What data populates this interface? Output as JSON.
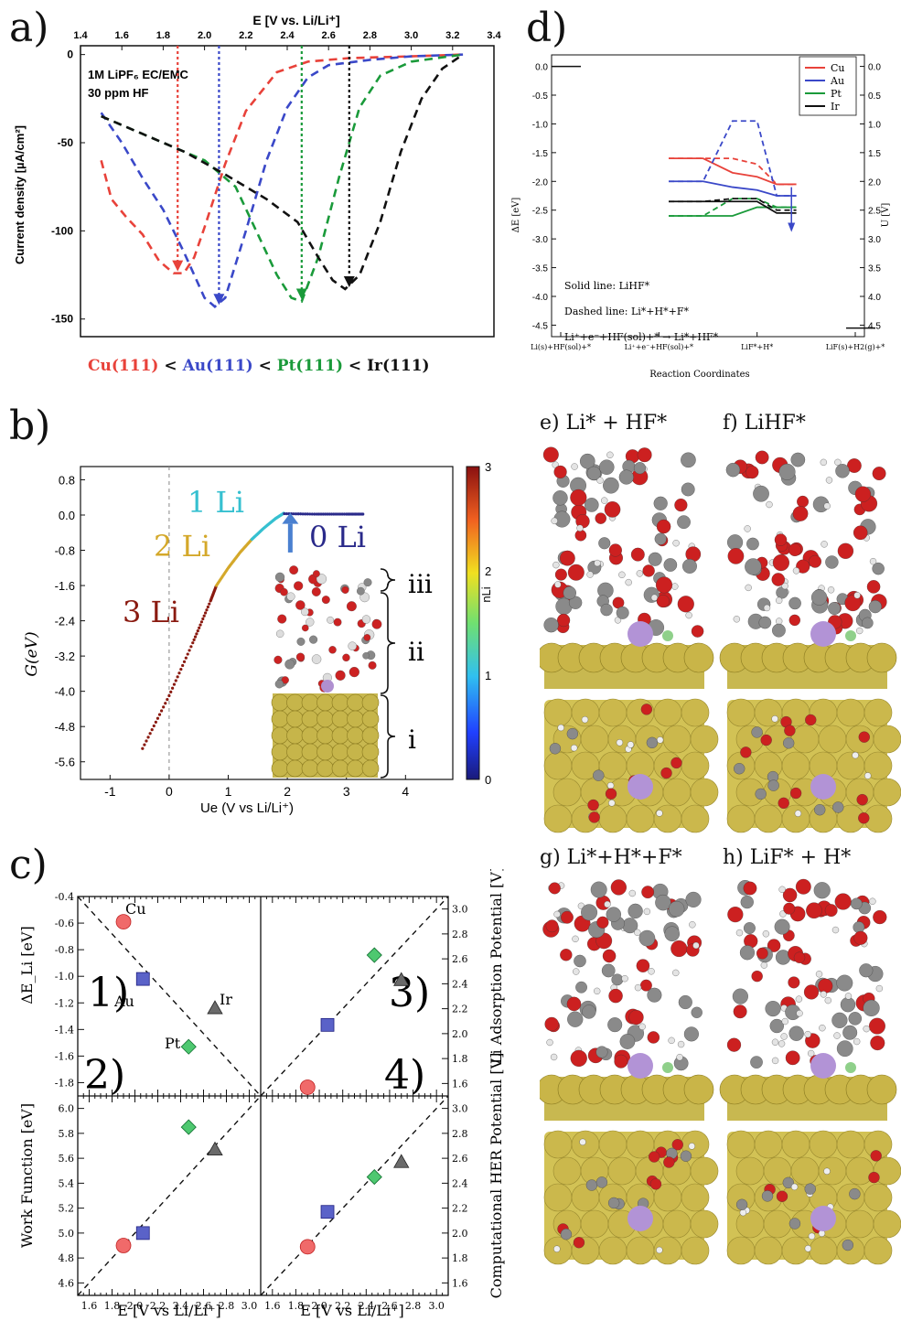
{
  "panel_labels": {
    "a": "a)",
    "b": "b)",
    "c": "c)",
    "d": "d)",
    "e": "e) Li* + HF*",
    "f": "f) LiHF*",
    "g": "g) Li*+H*+F*",
    "h": "h) LiF* + H*"
  },
  "panel_a": {
    "xlabel": "E [V vs. Li/Li⁺]",
    "ylabel": "Current density [µA/cm²]",
    "annotation_lines": [
      "1M LiPF₆ EC/EMC",
      "30 ppm HF"
    ],
    "ordering": [
      {
        "text": "Cu(111)",
        "color": "#e8423a"
      },
      {
        "text": " < ",
        "color": "#111111"
      },
      {
        "text": "Au(111)",
        "color": "#3a48c8"
      },
      {
        "text": " < ",
        "color": "#111111"
      },
      {
        "text": "Pt(111)",
        "color": "#1a9a3a"
      },
      {
        "text": " < ",
        "color": "#111111"
      },
      {
        "text": "Ir(111)",
        "color": "#111111"
      }
    ]
  },
  "panel_b": {
    "xlabel": "Ue (V vs Li/Li⁺)",
    "ylabel": "G(eV)",
    "colorbar_label": "nLi",
    "annotations": [
      {
        "text": "1 Li",
        "color": "#36c0d0"
      },
      {
        "text": "2 Li",
        "color": "#d4a82a"
      },
      {
        "text": "3 Li",
        "color": "#8a1a10"
      },
      {
        "text": "0 Li",
        "color": "#2a2a8a"
      }
    ],
    "regions": [
      "iii",
      "ii",
      "i"
    ]
  },
  "panel_c": {
    "left_ylabels": [
      "ΔE_Li [eV]",
      "Work Function [eV]"
    ],
    "right_ylabels": [
      "Li Adsorption Potential [V]",
      "Computational HER Potential [V]"
    ],
    "xlabel": "E [V vs Li/Li⁺]",
    "subplot_numbers": [
      "1)",
      "2)",
      "3)",
      "4)"
    ],
    "metal_labels": [
      "Cu",
      "Au",
      "Ir",
      "Pt"
    ]
  },
  "panel_d": {
    "ylabel_left": "ΔE [eV]",
    "ylabel_right": "U [V]",
    "xlabel": "Reaction Coordinates",
    "xtick_labels": [
      "Li(s)+HF(sol)+*",
      "Li⁺+e⁻+HF(sol)+*",
      "LiF*+H*",
      "LiF(s)+H2(g)+*"
    ],
    "notes": [
      "Solid line: LiHF*",
      "Dashed line: Li*+H*+F*",
      "Li⁺+e⁻+HF(sol)+* → Li*+HF*"
    ],
    "legend": [
      {
        "name": "Cu",
        "color": "#e8423a"
      },
      {
        "name": "Au",
        "color": "#3a48c8"
      },
      {
        "name": "Pt",
        "color": "#1a9a3a"
      },
      {
        "name": "Ir",
        "color": "#111111"
      }
    ]
  },
  "chart_data": [
    {
      "id": "a",
      "type": "line",
      "xlabel": "E [V vs. Li/Li⁺]",
      "ylabel": "Current density [µA/cm²]",
      "xlim": [
        1.4,
        3.4
      ],
      "ylim": [
        -160,
        5
      ],
      "xticks": [
        1.4,
        1.6,
        1.8,
        2.0,
        2.2,
        2.4,
        2.6,
        2.8,
        3.0,
        3.2,
        3.4
      ],
      "yticks": [
        0,
        -50,
        -100,
        -150
      ],
      "series": [
        {
          "name": "Cu(111)",
          "color": "#e8423a",
          "peak_x": 1.87,
          "x": [
            1.5,
            1.55,
            1.62,
            1.7,
            1.78,
            1.85,
            1.9,
            1.95,
            2.0,
            2.1,
            2.2,
            2.35,
            2.5,
            2.7,
            3.0,
            3.25
          ],
          "y": [
            -60,
            -82,
            -92,
            -102,
            -117,
            -124,
            -124,
            -115,
            -98,
            -62,
            -32,
            -10,
            -4,
            -2,
            -1,
            0
          ]
        },
        {
          "name": "Au(111)",
          "color": "#3a48c8",
          "peak_x": 2.07,
          "x": [
            1.5,
            1.6,
            1.7,
            1.8,
            1.9,
            2.0,
            2.05,
            2.1,
            2.2,
            2.3,
            2.4,
            2.5,
            2.6,
            2.8,
            3.0,
            3.25
          ],
          "y": [
            -33,
            -50,
            -70,
            -88,
            -112,
            -138,
            -143,
            -138,
            -100,
            -60,
            -30,
            -13,
            -6,
            -3,
            -1,
            0
          ]
        },
        {
          "name": "Pt(111)",
          "color": "#1a9a3a",
          "peak_x": 2.47,
          "x": [
            1.5,
            1.6,
            1.8,
            2.0,
            2.15,
            2.25,
            2.35,
            2.42,
            2.47,
            2.55,
            2.65,
            2.75,
            2.85,
            3.0,
            3.25
          ],
          "y": [
            -35,
            -40,
            -50,
            -60,
            -75,
            -100,
            -125,
            -138,
            -140,
            -115,
            -70,
            -30,
            -12,
            -4,
            0
          ]
        },
        {
          "name": "Ir(111)",
          "color": "#111111",
          "peak_x": 2.7,
          "x": [
            1.5,
            1.7,
            1.9,
            2.1,
            2.3,
            2.45,
            2.55,
            2.62,
            2.68,
            2.75,
            2.85,
            2.95,
            3.05,
            3.15,
            3.25
          ],
          "y": [
            -35,
            -45,
            -55,
            -68,
            -82,
            -95,
            -115,
            -128,
            -133,
            -125,
            -95,
            -55,
            -25,
            -8,
            0
          ]
        }
      ]
    },
    {
      "id": "b",
      "type": "scatter",
      "xlabel": "Ue (V vs Li/Li⁺)",
      "ylabel": "G(eV)",
      "xlim": [
        -1.5,
        4.8
      ],
      "ylim": [
        -6.0,
        1.1
      ],
      "xticks": [
        -1,
        0,
        1,
        2,
        3,
        4
      ],
      "yticks": [
        0.8,
        0.0,
        -0.8,
        -1.6,
        -2.4,
        -3.2,
        -4.0,
        -4.8,
        -5.6
      ],
      "colorbar": {
        "label": "nLi",
        "range": [
          0,
          3
        ],
        "ticks": [
          0,
          1,
          2,
          3
        ]
      },
      "series": [
        {
          "name": "3 Li",
          "color": "#8a1a10",
          "x": [
            -0.45,
            0.0,
            0.4,
            0.7,
            0.8
          ],
          "y": [
            -5.3,
            -4.1,
            -2.9,
            -1.95,
            -1.6
          ]
        },
        {
          "name": "2 Li",
          "color": "#d4a82a",
          "x": [
            0.8,
            1.0,
            1.2,
            1.4
          ],
          "y": [
            -1.6,
            -1.2,
            -0.85,
            -0.55
          ]
        },
        {
          "name": "1 Li",
          "color": "#36c0d0",
          "x": [
            1.4,
            1.6,
            1.8,
            1.95
          ],
          "y": [
            -0.55,
            -0.3,
            -0.08,
            0.05
          ]
        },
        {
          "name": "0 Li",
          "color": "#2a2a8a",
          "x": [
            1.95,
            2.5,
            3.0,
            3.3
          ],
          "y": [
            0.03,
            0.02,
            0.02,
            0.02
          ]
        }
      ]
    },
    {
      "id": "c1",
      "type": "scatter",
      "xlabel": "",
      "ylabel": "ΔE_Li [eV]",
      "xlim": [
        1.5,
        3.1
      ],
      "ylim": [
        -1.9,
        -0.4
      ],
      "yticks": [
        -0.4,
        -0.6,
        -0.8,
        -1.0,
        -1.2,
        -1.4,
        -1.6,
        -1.8
      ],
      "points": [
        {
          "name": "Cu",
          "x": 1.9,
          "y": -0.59,
          "color": "#f06a6a",
          "marker": "circle"
        },
        {
          "name": "Au",
          "x": 2.07,
          "y": -1.02,
          "color": "#5a62c8",
          "marker": "square"
        },
        {
          "name": "Pt",
          "x": 2.47,
          "y": -1.53,
          "color": "#4ec870",
          "marker": "diamond"
        },
        {
          "name": "Ir",
          "x": 2.7,
          "y": -1.24,
          "color": "#6a6a6a",
          "marker": "triangle"
        }
      ],
      "fit_line": {
        "x": [
          1.5,
          3.1
        ],
        "y": [
          -0.4,
          -1.9
        ]
      }
    },
    {
      "id": "c2",
      "type": "scatter",
      "xlabel": "E [V vs Li/Li⁺]",
      "ylabel": "Work Function [eV]",
      "xlim": [
        1.5,
        3.1
      ],
      "ylim": [
        4.5,
        6.1
      ],
      "xticks": [
        1.6,
        1.8,
        2.0,
        2.2,
        2.4,
        2.6,
        2.8,
        3.0
      ],
      "yticks": [
        4.6,
        4.8,
        5.0,
        5.2,
        5.4,
        5.6,
        5.8,
        6.0
      ],
      "points": [
        {
          "name": "Cu",
          "x": 1.9,
          "y": 4.9,
          "color": "#f06a6a",
          "marker": "circle"
        },
        {
          "name": "Au",
          "x": 2.07,
          "y": 5.0,
          "color": "#5a62c8",
          "marker": "square"
        },
        {
          "name": "Pt",
          "x": 2.47,
          "y": 5.85,
          "color": "#4ec870",
          "marker": "diamond"
        },
        {
          "name": "Ir",
          "x": 2.7,
          "y": 5.67,
          "color": "#6a6a6a",
          "marker": "triangle"
        }
      ],
      "fit_line": {
        "x": [
          1.5,
          3.1
        ],
        "y": [
          4.5,
          6.1
        ]
      }
    },
    {
      "id": "c3",
      "type": "scatter",
      "xlabel": "",
      "ylabel": "Li Adsorption Potential [V]",
      "xlim": [
        1.5,
        3.1
      ],
      "ylim": [
        1.5,
        3.1
      ],
      "yticks": [
        1.6,
        1.8,
        2.0,
        2.2,
        2.4,
        2.6,
        2.8,
        3.0
      ],
      "points": [
        {
          "name": "Cu",
          "x": 1.9,
          "y": 1.57,
          "color": "#f06a6a",
          "marker": "circle"
        },
        {
          "name": "Au",
          "x": 2.07,
          "y": 2.07,
          "color": "#5a62c8",
          "marker": "square"
        },
        {
          "name": "Pt",
          "x": 2.47,
          "y": 2.63,
          "color": "#4ec870",
          "marker": "diamond"
        },
        {
          "name": "Ir",
          "x": 2.7,
          "y": 2.43,
          "color": "#6a6a6a",
          "marker": "triangle"
        }
      ],
      "fit_line": {
        "x": [
          1.5,
          3.1
        ],
        "y": [
          1.5,
          3.1
        ]
      }
    },
    {
      "id": "c4",
      "type": "scatter",
      "xlabel": "E [V vs Li/Li⁺]",
      "ylabel": "Computational HER Potential [V]",
      "xlim": [
        1.5,
        3.1
      ],
      "ylim": [
        1.5,
        3.1
      ],
      "xticks": [
        1.6,
        1.8,
        2.0,
        2.2,
        2.4,
        2.6,
        2.8,
        3.0
      ],
      "yticks": [
        1.6,
        1.8,
        2.0,
        2.2,
        2.4,
        2.6,
        2.8,
        3.0
      ],
      "points": [
        {
          "name": "Cu",
          "x": 1.9,
          "y": 1.89,
          "color": "#f06a6a",
          "marker": "circle"
        },
        {
          "name": "Au",
          "x": 2.07,
          "y": 2.17,
          "color": "#5a62c8",
          "marker": "square"
        },
        {
          "name": "Pt",
          "x": 2.47,
          "y": 2.45,
          "color": "#4ec870",
          "marker": "diamond"
        },
        {
          "name": "Ir",
          "x": 2.7,
          "y": 2.57,
          "color": "#6a6a6a",
          "marker": "triangle"
        }
      ],
      "fit_line": {
        "x": [
          1.5,
          3.1
        ],
        "y": [
          1.5,
          3.1
        ]
      }
    },
    {
      "id": "d",
      "type": "line",
      "xlabel": "Reaction Coordinates",
      "ylabel": "ΔE [eV]",
      "ylim": [
        -4.7,
        0.2
      ],
      "yticks": [
        0.0,
        -0.5,
        -1.0,
        -1.5,
        -2.0,
        -2.5,
        -3.0,
        -3.5,
        -4.0,
        -4.5
      ],
      "right_yticks": [
        0.0,
        0.5,
        1.0,
        1.5,
        2.0,
        2.5,
        3.0,
        3.5,
        4.0,
        4.5
      ],
      "categories": [
        "Li(s)+HF(sol)+*",
        "Li⁺+e⁻+HF(sol)+*",
        "LiF*+H*",
        "LiF(s)+H2(g)+*"
      ],
      "reference_levels": [
        {
          "x": 0,
          "y": 0.0
        },
        {
          "x": 3,
          "y": -4.55
        }
      ],
      "series": [
        {
          "name": "Cu",
          "style": "solid",
          "color": "#e8423a",
          "x": [
            1.1,
            1.45,
            1.75,
            2.0,
            2.2,
            2.3,
            2.4
          ],
          "y": [
            -1.6,
            -1.6,
            -1.85,
            -1.92,
            -2.05,
            -2.05,
            -2.05
          ]
        },
        {
          "name": "Cu",
          "style": "dashed",
          "color": "#e8423a",
          "x": [
            1.1,
            1.45,
            1.75,
            2.0,
            2.2,
            2.3,
            2.4
          ],
          "y": [
            -1.6,
            -1.6,
            -1.6,
            -1.7,
            -2.05,
            -2.05,
            -2.05
          ]
        },
        {
          "name": "Au",
          "style": "solid",
          "color": "#3a48c8",
          "x": [
            1.1,
            1.45,
            1.75,
            2.0,
            2.2,
            2.3,
            2.4
          ],
          "y": [
            -2.0,
            -2.0,
            -2.1,
            -2.15,
            -2.25,
            -2.25,
            -2.25
          ]
        },
        {
          "name": "Au",
          "style": "dashed",
          "color": "#3a48c8",
          "x": [
            1.1,
            1.45,
            1.75,
            2.0,
            2.2,
            2.3,
            2.4
          ],
          "y": [
            -2.0,
            -2.0,
            -0.95,
            -0.95,
            -2.25,
            -2.25,
            -2.25
          ]
        },
        {
          "name": "Pt",
          "style": "solid",
          "color": "#1a9a3a",
          "x": [
            1.1,
            1.45,
            1.75,
            2.0,
            2.2,
            2.3,
            2.4
          ],
          "y": [
            -2.6,
            -2.6,
            -2.6,
            -2.45,
            -2.45,
            -2.45,
            -2.45
          ]
        },
        {
          "name": "Pt",
          "style": "dashed",
          "color": "#1a9a3a",
          "x": [
            1.1,
            1.45,
            1.75,
            2.0,
            2.2,
            2.3,
            2.4
          ],
          "y": [
            -2.6,
            -2.6,
            -2.3,
            -2.3,
            -2.45,
            -2.45,
            -2.45
          ]
        },
        {
          "name": "Ir",
          "style": "solid",
          "color": "#111111",
          "x": [
            1.1,
            1.45,
            1.75,
            2.0,
            2.2,
            2.3,
            2.4
          ],
          "y": [
            -2.35,
            -2.35,
            -2.35,
            -2.35,
            -2.55,
            -2.55,
            -2.55
          ]
        },
        {
          "name": "Ir",
          "style": "dashed",
          "color": "#111111",
          "x": [
            1.1,
            1.45,
            1.75,
            2.0,
            2.2,
            2.3,
            2.4
          ],
          "y": [
            -2.35,
            -2.35,
            -2.3,
            -2.3,
            -2.5,
            -2.5,
            -2.5
          ]
        }
      ]
    }
  ]
}
